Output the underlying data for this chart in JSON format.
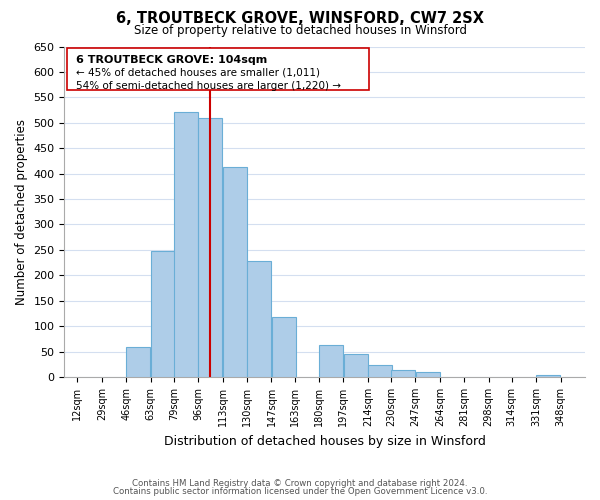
{
  "title": "6, TROUTBECK GROVE, WINSFORD, CW7 2SX",
  "subtitle": "Size of property relative to detached houses in Winsford",
  "xlabel": "Distribution of detached houses by size in Winsford",
  "ylabel": "Number of detached properties",
  "bar_left_edges": [
    12,
    29,
    46,
    63,
    79,
    96,
    113,
    130,
    147,
    163,
    180,
    197,
    214,
    230,
    247,
    264,
    281,
    298,
    314,
    331
  ],
  "bar_heights": [
    0,
    0,
    60,
    248,
    521,
    510,
    414,
    229,
    118,
    0,
    64,
    45,
    24,
    13,
    10,
    0,
    0,
    0,
    0,
    5
  ],
  "bar_color": "#aecde8",
  "bar_edgecolor": "#6aaed6",
  "reference_line_x": 104,
  "reference_line_color": "#cc0000",
  "ylim": [
    0,
    650
  ],
  "yticks": [
    0,
    50,
    100,
    150,
    200,
    250,
    300,
    350,
    400,
    450,
    500,
    550,
    600,
    650
  ],
  "xtick_labels": [
    "12sqm",
    "29sqm",
    "46sqm",
    "63sqm",
    "79sqm",
    "96sqm",
    "113sqm",
    "130sqm",
    "147sqm",
    "163sqm",
    "180sqm",
    "197sqm",
    "214sqm",
    "230sqm",
    "247sqm",
    "264sqm",
    "281sqm",
    "298sqm",
    "314sqm",
    "331sqm",
    "348sqm"
  ],
  "xtick_positions": [
    12,
    29,
    46,
    63,
    79,
    96,
    113,
    130,
    147,
    163,
    180,
    197,
    214,
    230,
    247,
    264,
    281,
    298,
    314,
    331,
    348
  ],
  "annotation_title": "6 TROUTBECK GROVE: 104sqm",
  "annotation_line1": "← 45% of detached houses are smaller (1,011)",
  "annotation_line2": "54% of semi-detached houses are larger (1,220) →",
  "footer_line1": "Contains HM Land Registry data © Crown copyright and database right 2024.",
  "footer_line2": "Contains public sector information licensed under the Open Government Licence v3.0.",
  "background_color": "#ffffff",
  "grid_color": "#d4dff0",
  "annotation_box_edgecolor": "#cc0000",
  "annotation_box_facecolor": "#ffffff",
  "bin_width": 17
}
